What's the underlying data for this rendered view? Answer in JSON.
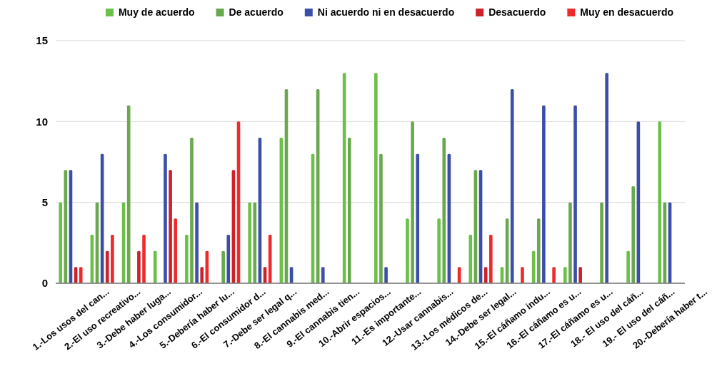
{
  "chart_data": {
    "type": "bar",
    "categories": [
      "1.-Los usos del can...",
      "2.-El uso recreativo...",
      "3.-Debe haber luga...",
      "4.-Los consumidor...",
      "5.-Debería haber lu...",
      "6.-El consumidor d...",
      "7.-Debe ser legal q...",
      "8.-El cannabis med...",
      "9.-El cannabis tien...",
      "10.-Abrir espacios...",
      "11.-Es importante...",
      "12.-Usar cannabis...",
      "13.-Los médicos de...",
      "14.-Debe ser legal...",
      "15.-El cáñamo indu...",
      "16.-El cáñamo es u...",
      "17.-El cáñamo es u...",
      "18.- El uso del cáñ...",
      "19.- El uso del cáñ...",
      "20.-Debería haber t..."
    ],
    "series": [
      {
        "name": "Muy de acuerdo",
        "color": "#6cc04a",
        "values": [
          5,
          3,
          5,
          2,
          3,
          0,
          5,
          9,
          8,
          13,
          13,
          4,
          4,
          3,
          1,
          2,
          1,
          0,
          2,
          10
        ]
      },
      {
        "name": "De acuerdo",
        "color": "#6aa84f",
        "values": [
          7,
          5,
          11,
          0,
          9,
          2,
          5,
          12,
          12,
          9,
          8,
          10,
          9,
          7,
          4,
          4,
          5,
          5,
          6,
          5
        ]
      },
      {
        "name": "Ni acuerdo ni en desacuerdo",
        "color": "#3c4fa8",
        "values": [
          7,
          8,
          0,
          8,
          5,
          3,
          9,
          1,
          1,
          0,
          1,
          8,
          8,
          7,
          12,
          11,
          11,
          13,
          10,
          5
        ]
      },
      {
        "name": "Desacuerdo",
        "color": "#cc2229",
        "values": [
          1,
          2,
          2,
          7,
          1,
          7,
          1,
          0,
          0,
          0,
          0,
          0,
          0,
          1,
          0,
          0,
          1,
          0,
          0,
          0
        ]
      },
      {
        "name": "Muy en desacuerdo",
        "color": "#ee2a2a",
        "values": [
          1,
          3,
          3,
          4,
          2,
          10,
          3,
          0,
          0,
          0,
          0,
          0,
          1,
          3,
          1,
          1,
          0,
          0,
          0,
          0
        ]
      }
    ],
    "ylim": [
      0,
      15
    ],
    "yticks": [
      0,
      5,
      10,
      15
    ],
    "grid": "y",
    "legend": "top"
  }
}
